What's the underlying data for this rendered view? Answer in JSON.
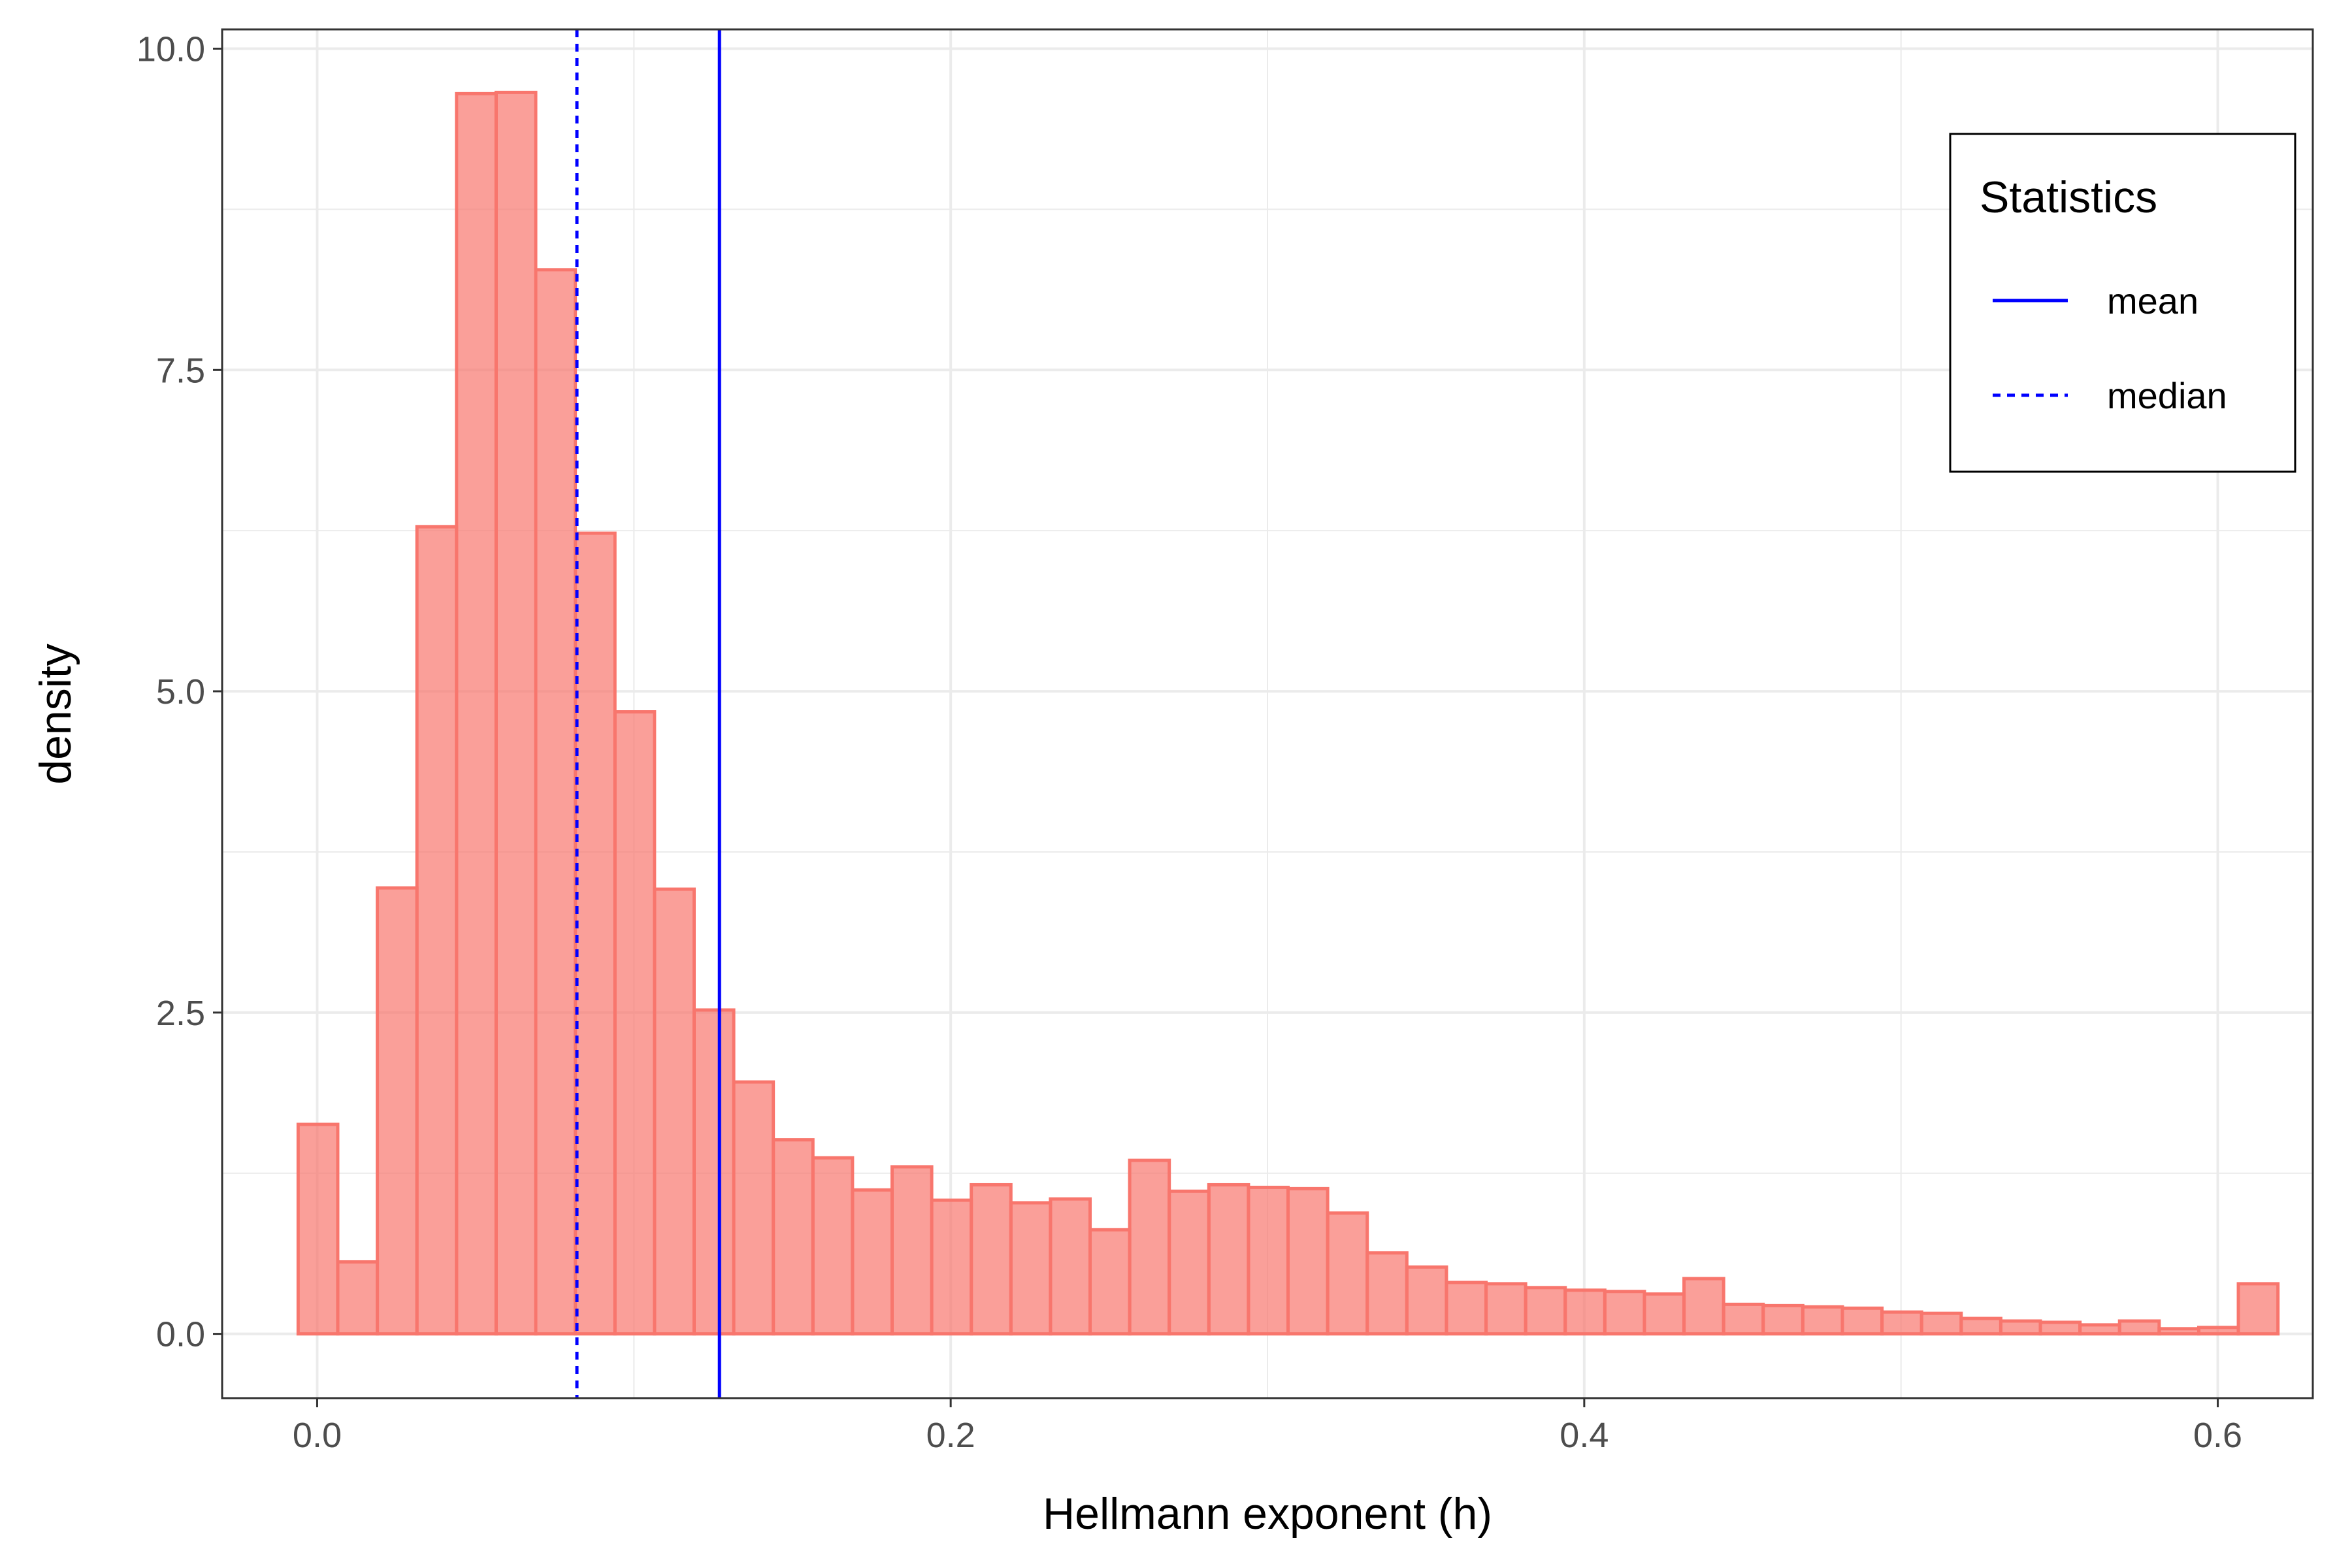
{
  "chart_data": {
    "type": "histogram",
    "xlabel": "Hellmann exponent (h)",
    "ylabel": "density",
    "xlim": [
      -0.03,
      0.63
    ],
    "ylim": [
      -0.5,
      10.15
    ],
    "x_ticks": [
      0.0,
      0.2,
      0.4,
      0.6
    ],
    "x_tick_labels": [
      "0.0",
      "0.2",
      "0.4",
      "0.6"
    ],
    "y_ticks": [
      0.0,
      2.5,
      5.0,
      7.5,
      10.0
    ],
    "y_tick_labels": [
      "0.0",
      "2.5",
      "5.0",
      "7.5",
      "10.0"
    ],
    "grid": true,
    "bin_start": -0.006,
    "bin_width": 0.0125,
    "values": [
      1.63,
      0.56,
      3.47,
      6.28,
      9.65,
      9.66,
      8.28,
      6.23,
      4.84,
      3.46,
      2.52,
      1.96,
      1.51,
      1.37,
      1.12,
      1.3,
      1.04,
      1.16,
      1.02,
      1.05,
      0.81,
      1.35,
      1.11,
      1.16,
      1.14,
      1.13,
      0.94,
      0.63,
      0.52,
      0.4,
      0.39,
      0.36,
      0.34,
      0.33,
      0.31,
      0.43,
      0.23,
      0.22,
      0.21,
      0.2,
      0.17,
      0.16,
      0.12,
      0.1,
      0.09,
      0.07,
      0.1,
      0.04,
      0.05,
      0.39
    ],
    "bar_fill": "#f8766d",
    "bar_fill_opacity": 0.7,
    "bar_outline": "#f8766d",
    "reference_lines": [
      {
        "name": "mean",
        "x": 0.127,
        "style": "solid",
        "color": "#0000ff"
      },
      {
        "name": "median",
        "x": 0.082,
        "style": "dotted",
        "color": "#0000ff"
      }
    ],
    "legend": {
      "title": "Statistics",
      "position": "top-right",
      "items": [
        {
          "label": "mean",
          "style": "solid"
        },
        {
          "label": "median",
          "style": "dotted"
        }
      ]
    }
  }
}
